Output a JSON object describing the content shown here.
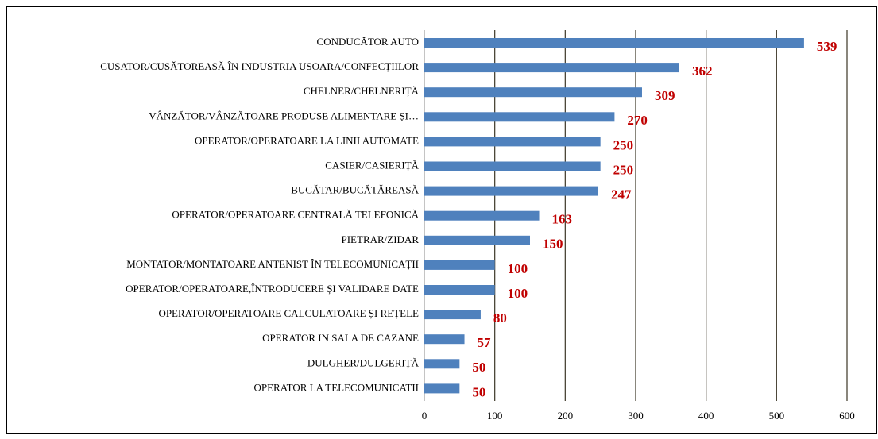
{
  "chart_data": {
    "type": "bar",
    "orientation": "horizontal",
    "categories": [
      "CONDUCĂTOR AUTO",
      "CUSATOR/CUSĂTOREASĂ ÎN INDUSTRIA USOARA/CONFECȚIILOR",
      "CHELNER/CHELNERIȚĂ",
      "VÂNZĂTOR/VÂNZĂTOARE PRODUSE ALIMENTARE ȘI…",
      "OPERATOR/OPERATOARE LA LINII AUTOMATE",
      "CASIER/CASIERIȚĂ",
      "BUCĂTAR/BUCĂTĂREASĂ",
      "OPERATOR/OPERATOARE CENTRALĂ TELEFONICĂ",
      "PIETRAR/ZIDAR",
      "MONTATOR/MONTATOARE ANTENIST ÎN TELECOMUNICAȚII",
      "OPERATOR/OPERATOARE,ÎNTRODUCERE ȘI VALIDARE DATE",
      "OPERATOR/OPERATOARE CALCULATOARE ȘI REȚELE",
      "OPERATOR IN SALA DE CAZANE",
      "DULGHER/DULGERIȚĂ",
      "OPERATOR LA TELECOMUNICATII"
    ],
    "values": [
      539,
      362,
      309,
      270,
      250,
      250,
      247,
      163,
      150,
      100,
      100,
      80,
      57,
      50,
      50
    ],
    "color": "#4f81bd",
    "label_color": "#c00000",
    "xlim": [
      0,
      600
    ],
    "xticks": [
      0,
      100,
      200,
      300,
      400,
      500,
      600
    ],
    "grid": true
  }
}
